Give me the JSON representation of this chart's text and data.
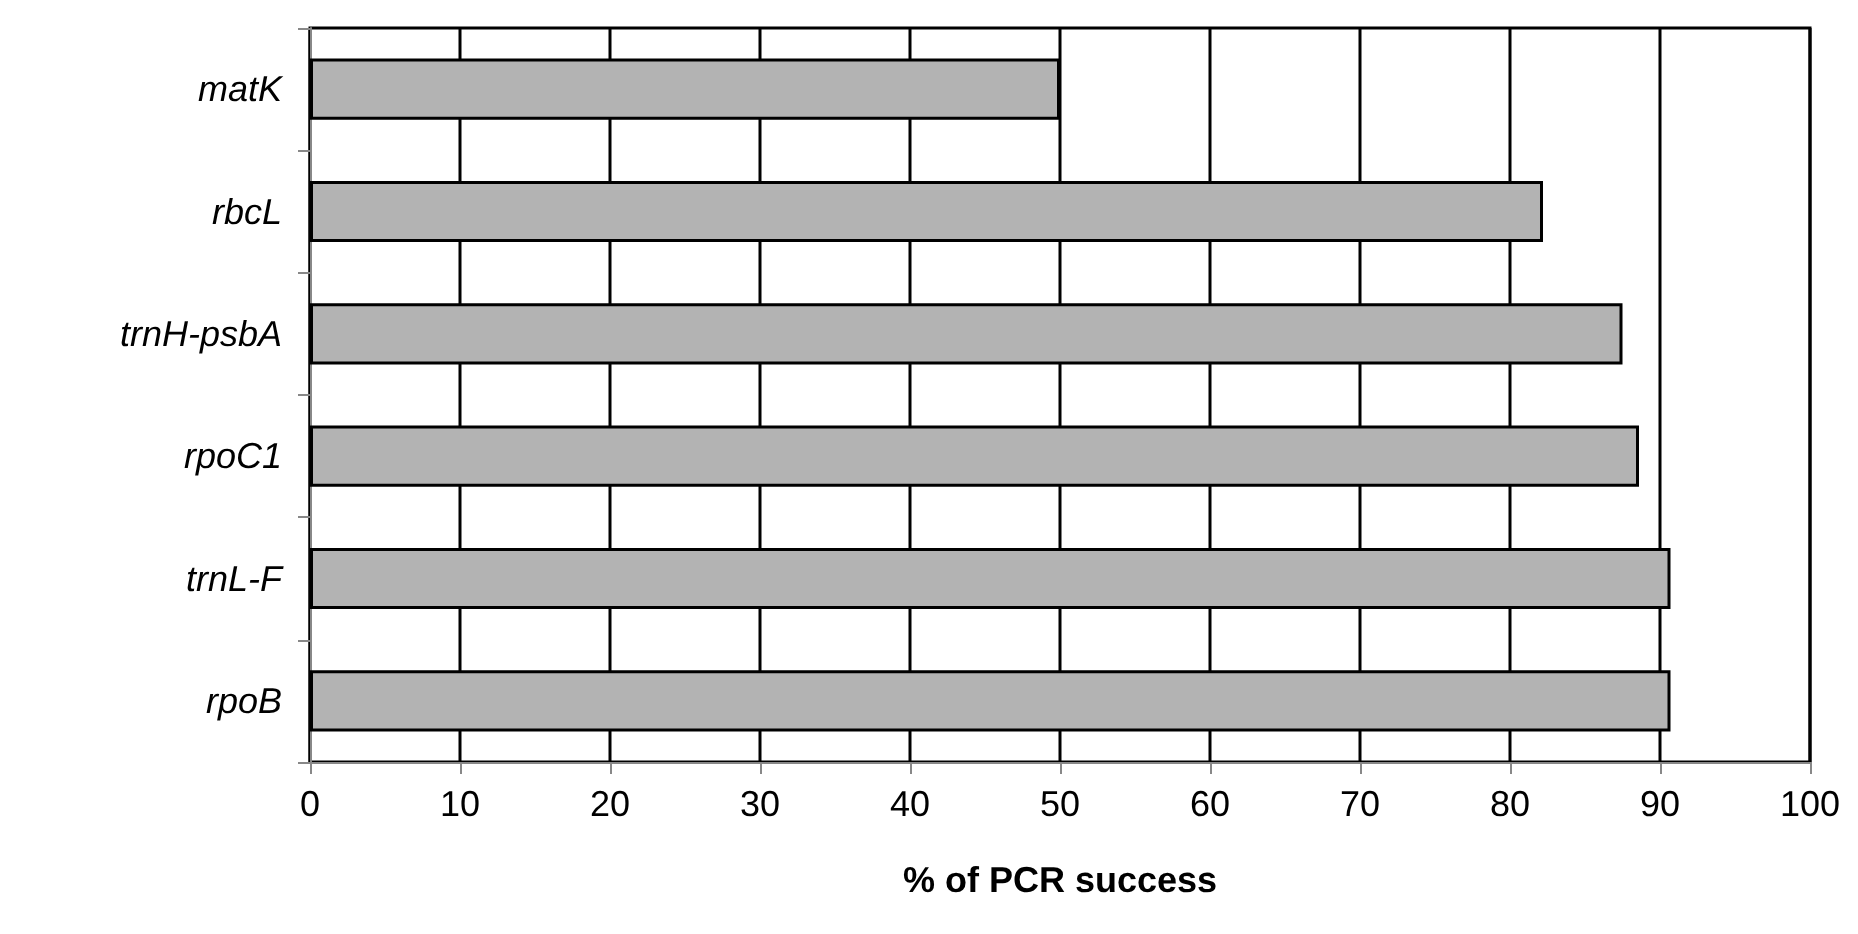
{
  "chart_data": {
    "type": "bar",
    "orientation": "horizontal",
    "xlabel": "% of PCR success",
    "categories": [
      "matK",
      "rbcL",
      "trnH-psbA",
      "rpoC1",
      "trnL-F",
      "rpoB"
    ],
    "values": [
      50,
      82.2,
      87.5,
      88.6,
      90.7,
      90.7
    ],
    "color": "#b3b3b3",
    "xlim": [
      0,
      100
    ],
    "xticks": [
      0,
      10,
      20,
      30,
      40,
      50,
      60,
      70,
      80,
      90,
      100
    ],
    "grid": "x"
  }
}
